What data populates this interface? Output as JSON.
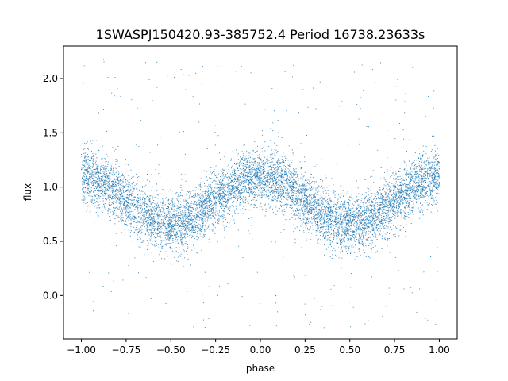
{
  "chart_data": {
    "type": "scatter",
    "title": "1SWASPJ150420.93-385752.4 Period 16738.23633s",
    "xlabel": "phase",
    "ylabel": "flux",
    "xlim": [
      -1.1,
      1.1
    ],
    "ylim": [
      -0.4,
      2.3
    ],
    "xticks": [
      -1.0,
      -0.75,
      -0.5,
      -0.25,
      0.0,
      0.25,
      0.5,
      0.75,
      1.0
    ],
    "xtick_labels": [
      "−1.00",
      "−0.75",
      "−0.50",
      "−0.25",
      "0.00",
      "0.25",
      "0.50",
      "0.75",
      "1.00"
    ],
    "yticks": [
      0.0,
      0.5,
      1.0,
      1.5,
      2.0
    ],
    "ytick_labels": [
      "0.0",
      "0.5",
      "1.0",
      "1.5",
      "2.0"
    ],
    "grid": false,
    "legend": "none",
    "point_color": "#1f77b4",
    "x_range": [
      -1.0,
      1.0
    ],
    "model": {
      "description_of_shape": "double-humped light curve, maxima near phase -1, 0, 1; minima near phase -0.5 and 0.5",
      "mean_flux": 0.88,
      "amplitude": 0.22,
      "harmonic": 2,
      "scatter_sigma": 0.13,
      "outlier_fraction": 0.04,
      "outlier_range": [
        -0.3,
        2.2
      ]
    }
  }
}
